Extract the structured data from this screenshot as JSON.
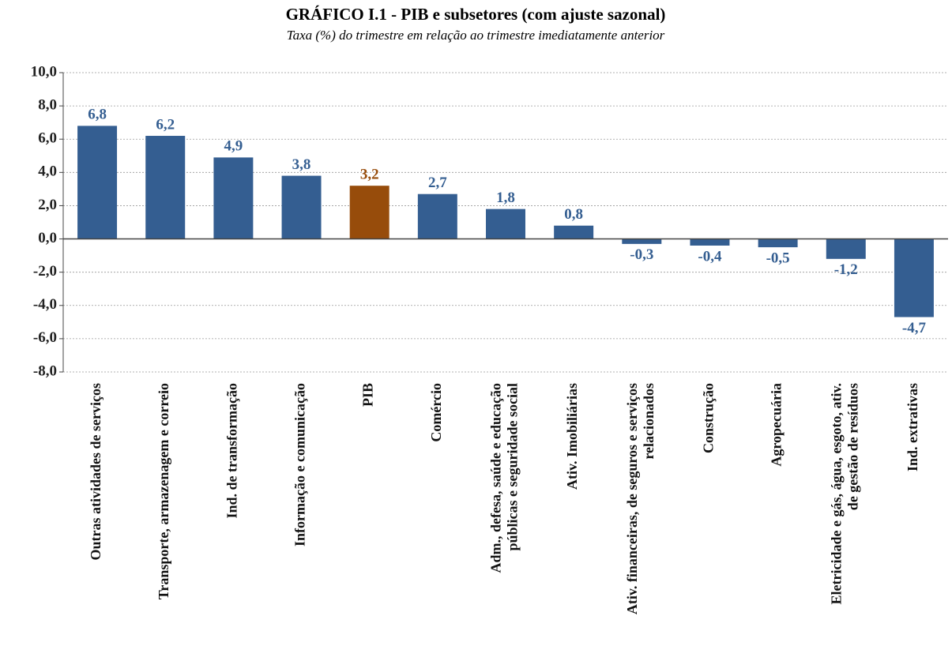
{
  "chart_data": {
    "type": "bar",
    "title": "GRÁFICO I.1 - PIB  e subsetores (com ajuste sazonal)",
    "subtitle": "Taxa (%) do trimestre em relação ao trimestre imediatamente anterior",
    "categories": [
      "Outras atividades de serviços",
      "Transporte, armazenagem e correio",
      "Ind. de transformação",
      "Informação e comunicação",
      "PIB",
      "Comércio",
      "Adm., defesa, saúde e educação públicas e seguridade social",
      "Ativ. Imobiliárias",
      "Ativ. financeiras, de seguros e serviços relacionados",
      "Construção",
      "Agropecuária",
      "Eletricidade e gás, água, esgoto, ativ. de gestão de resíduos",
      "Ind. extrativas"
    ],
    "values": [
      6.8,
      6.2,
      4.9,
      3.8,
      3.2,
      2.7,
      1.8,
      0.8,
      -0.3,
      -0.4,
      -0.5,
      -1.2,
      -4.7
    ],
    "value_labels": [
      "6,8",
      "6,2",
      "4,9",
      "3,8",
      "3,2",
      "2,7",
      "1,8",
      "0,8",
      "-0,3",
      "-0,4",
      "-0,5",
      "-1,2",
      "-4,7"
    ],
    "colors": [
      "#345e91",
      "#345e91",
      "#345e91",
      "#345e91",
      "#974c0b",
      "#345e91",
      "#345e91",
      "#345e91",
      "#345e91",
      "#345e91",
      "#345e91",
      "#345e91",
      "#345e91"
    ],
    "ylim": [
      -8,
      10
    ],
    "yticks": [
      {
        "value": -8,
        "label": "-8,0"
      },
      {
        "value": -6,
        "label": "-6,0"
      },
      {
        "value": -4,
        "label": "-4,0"
      },
      {
        "value": -2,
        "label": "-2,0"
      },
      {
        "value": 0,
        "label": "0,0"
      },
      {
        "value": 2,
        "label": "2,0"
      },
      {
        "value": 4,
        "label": "4,0"
      },
      {
        "value": 6,
        "label": "6,0"
      },
      {
        "value": 8,
        "label": "8,0"
      },
      {
        "value": 10,
        "label": "10,0"
      }
    ],
    "grid": true
  }
}
